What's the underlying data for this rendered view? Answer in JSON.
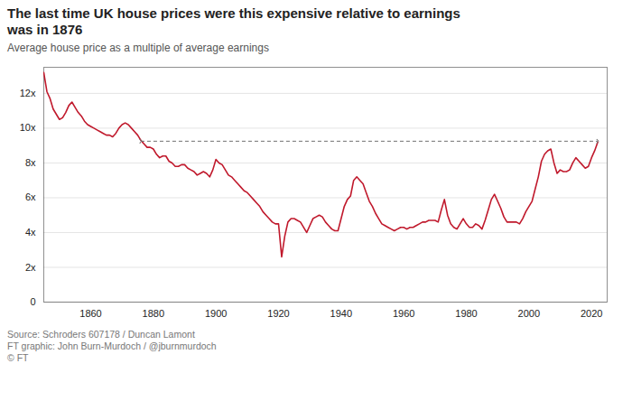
{
  "chart_data": {
    "type": "line",
    "title": "The last time UK house prices were this expensive relative to earnings\nwas in 1876",
    "subtitle": "Average house price as a multiple of average earnings",
    "source": "Source: Schroders 607178 / Duncan Lamont\nFT graphic: John Burn-Murdoch / @jburnmurdoch\n© FT",
    "color": "#C0192C",
    "xlim": [
      1845,
      2025
    ],
    "ylim": [
      0,
      13.5
    ],
    "xticks": [
      1860,
      1880,
      1900,
      1920,
      1940,
      1960,
      1980,
      2000,
      2020
    ],
    "yticks": [
      0,
      {
        "value": 2,
        "label": "2x"
      },
      {
        "value": 4,
        "label": "4x"
      },
      {
        "value": 6,
        "label": "6x"
      },
      {
        "value": 8,
        "label": "8x"
      },
      {
        "value": 10,
        "label": "10x"
      },
      {
        "value": 12,
        "label": "12x"
      }
    ],
    "grid": true,
    "arrows": [
      {
        "x": [
          1876,
          2022
        ],
        "y": 9.25,
        "color": "#707070",
        "line_style": "dashed"
      }
    ],
    "x": [
      1845,
      1846,
      1847,
      1848,
      1849,
      1850,
      1851,
      1852,
      1853,
      1854,
      1855,
      1856,
      1857,
      1858,
      1859,
      1860,
      1861,
      1862,
      1863,
      1864,
      1865,
      1866,
      1867,
      1868,
      1869,
      1870,
      1871,
      1872,
      1873,
      1874,
      1875,
      1876,
      1877,
      1878,
      1879,
      1880,
      1881,
      1882,
      1883,
      1884,
      1885,
      1886,
      1887,
      1888,
      1889,
      1890,
      1891,
      1892,
      1893,
      1894,
      1895,
      1896,
      1897,
      1898,
      1899,
      1900,
      1901,
      1902,
      1903,
      1904,
      1905,
      1906,
      1907,
      1908,
      1909,
      1910,
      1911,
      1912,
      1913,
      1914,
      1915,
      1916,
      1917,
      1918,
      1919,
      1920,
      1921,
      1922,
      1923,
      1924,
      1925,
      1926,
      1927,
      1928,
      1929,
      1930,
      1931,
      1932,
      1933,
      1934,
      1935,
      1936,
      1937,
      1938,
      1939,
      1940,
      1941,
      1942,
      1943,
      1944,
      1945,
      1946,
      1947,
      1948,
      1949,
      1950,
      1951,
      1952,
      1953,
      1954,
      1955,
      1956,
      1957,
      1958,
      1959,
      1960,
      1961,
      1962,
      1963,
      1964,
      1965,
      1966,
      1967,
      1968,
      1969,
      1970,
      1971,
      1972,
      1973,
      1974,
      1975,
      1976,
      1977,
      1978,
      1979,
      1980,
      1981,
      1982,
      1983,
      1984,
      1985,
      1986,
      1987,
      1988,
      1989,
      1990,
      1991,
      1992,
      1993,
      1994,
      1995,
      1996,
      1997,
      1998,
      1999,
      2000,
      2001,
      2002,
      2003,
      2004,
      2005,
      2006,
      2007,
      2008,
      2009,
      2010,
      2011,
      2012,
      2013,
      2014,
      2015,
      2016,
      2017,
      2018,
      2019,
      2020,
      2021,
      2022
    ],
    "values": [
      13.2,
      12.1,
      11.7,
      11.1,
      10.8,
      10.5,
      10.6,
      10.9,
      11.3,
      11.5,
      11.2,
      10.9,
      10.7,
      10.4,
      10.2,
      10.1,
      10.0,
      9.9,
      9.8,
      9.7,
      9.6,
      9.6,
      9.5,
      9.7,
      10.0,
      10.2,
      10.3,
      10.2,
      10.0,
      9.8,
      9.6,
      9.3,
      9.1,
      8.9,
      8.9,
      8.8,
      8.5,
      8.3,
      8.4,
      8.4,
      8.1,
      8.0,
      7.8,
      7.8,
      7.9,
      7.9,
      7.7,
      7.6,
      7.5,
      7.3,
      7.4,
      7.5,
      7.4,
      7.2,
      7.6,
      8.2,
      8.0,
      7.9,
      7.6,
      7.3,
      7.2,
      7.0,
      6.8,
      6.6,
      6.4,
      6.3,
      6.1,
      5.9,
      5.7,
      5.5,
      5.2,
      5.0,
      4.8,
      4.6,
      4.5,
      4.5,
      2.6,
      3.8,
      4.6,
      4.8,
      4.8,
      4.7,
      4.6,
      4.3,
      4.0,
      4.4,
      4.8,
      4.9,
      5.0,
      4.9,
      4.6,
      4.4,
      4.2,
      4.1,
      4.1,
      4.8,
      5.5,
      5.9,
      6.1,
      7.0,
      7.2,
      7.0,
      6.8,
      6.3,
      5.8,
      5.5,
      5.1,
      4.8,
      4.5,
      4.4,
      4.3,
      4.2,
      4.1,
      4.2,
      4.3,
      4.3,
      4.2,
      4.3,
      4.3,
      4.4,
      4.5,
      4.6,
      4.6,
      4.7,
      4.7,
      4.7,
      4.6,
      5.3,
      5.9,
      5.0,
      4.5,
      4.3,
      4.2,
      4.5,
      4.8,
      4.5,
      4.3,
      4.3,
      4.5,
      4.4,
      4.2,
      4.7,
      5.3,
      5.9,
      6.2,
      5.8,
      5.4,
      4.9,
      4.6,
      4.6,
      4.6,
      4.6,
      4.5,
      4.8,
      5.2,
      5.5,
      5.8,
      6.5,
      7.2,
      8.1,
      8.5,
      8.7,
      8.8,
      8.0,
      7.4,
      7.6,
      7.5,
      7.5,
      7.6,
      8.0,
      8.3,
      8.1,
      7.9,
      7.7,
      7.8,
      8.3,
      8.7,
      9.2
    ]
  }
}
